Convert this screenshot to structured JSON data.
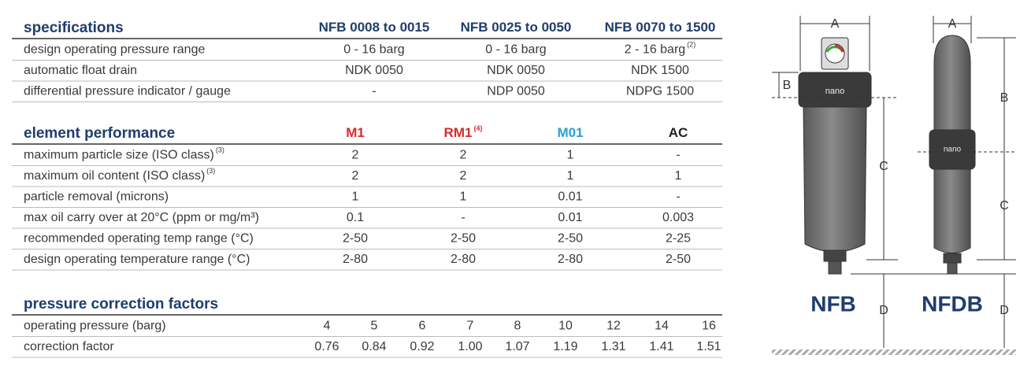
{
  "specifications": {
    "title": "specifications",
    "columns": [
      {
        "name": "NFB 0008 to 0015"
      },
      {
        "name": "NFB 0025 to 0050"
      },
      {
        "name": "NFB 0070 to 1500"
      }
    ],
    "rows": [
      {
        "label": "design operating pressure range",
        "cells": [
          "0 - 16 barg",
          "0 - 16 barg",
          {
            "text": "2 - 16 barg",
            "note": "(2)"
          }
        ]
      },
      {
        "label": "automatic float drain",
        "cells": [
          "NDK 0050",
          "NDK 0050",
          "NDK 1500"
        ]
      },
      {
        "label": "differential pressure indicator / gauge",
        "cells": [
          "-",
          "NDP 0050",
          "NDPG 1500"
        ]
      }
    ]
  },
  "element_performance": {
    "title": "element performance",
    "columns": [
      {
        "name": "M1",
        "color": "#d92b2b"
      },
      {
        "name": "RM1",
        "note": "(4)",
        "color": "#d92b2b"
      },
      {
        "name": "M01",
        "color": "#2a9fd8"
      },
      {
        "name": "AC",
        "color": "#222222"
      }
    ],
    "rows": [
      {
        "label": "maximum particle size (ISO class)",
        "note": "(3)",
        "cells": [
          "2",
          "2",
          "1",
          "-"
        ]
      },
      {
        "label": "maximum oil content (ISO class)",
        "note": "(3)",
        "cells": [
          "2",
          "2",
          "1",
          "1"
        ]
      },
      {
        "label": "particle removal (microns)",
        "cells": [
          "1",
          "1",
          "0.01",
          "-"
        ]
      },
      {
        "label": "max oil carry over at 20°C (ppm or mg/m³)",
        "cells": [
          "0.1",
          "-",
          "0.01",
          "0.003"
        ]
      },
      {
        "label": "recommended operating temp range (°C)",
        "cells": [
          "2-50",
          "2-50",
          "2-50",
          "2-25"
        ]
      },
      {
        "label": "design operating temperature range (°C)",
        "cells": [
          "2-80",
          "2-80",
          "2-80",
          "2-50"
        ]
      }
    ]
  },
  "pressure_correction": {
    "title": "pressure correction factors",
    "rows": [
      {
        "label": "operating pressure (barg)",
        "cells": [
          "4",
          "5",
          "6",
          "7",
          "8",
          "10",
          "12",
          "14",
          "16"
        ]
      },
      {
        "label": "correction factor",
        "cells": [
          "0.76",
          "0.84",
          "0.92",
          "1.00",
          "1.07",
          "1.19",
          "1.31",
          "1.41",
          "1.51"
        ]
      }
    ]
  },
  "diagram": {
    "nfb": {
      "name": "NFB",
      "logo": "nano",
      "a": "A",
      "b": "B",
      "c": "C",
      "d": "D"
    },
    "nfdb": {
      "name": "NFDB",
      "logo": "nano",
      "a": "A",
      "b": "B",
      "c": "C",
      "d": "D"
    }
  }
}
